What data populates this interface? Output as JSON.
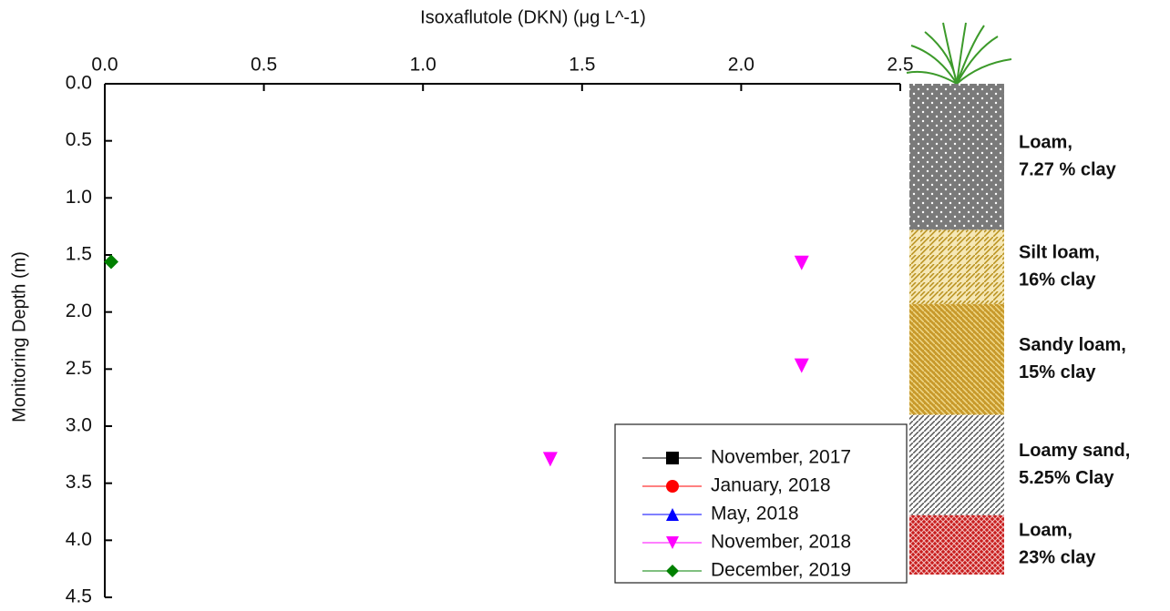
{
  "chart_data": {
    "type": "scatter",
    "title": "Isoxaflutole (DKN) (μg L^-1)",
    "y_label": "Monitoring Depth (m)",
    "xlim": [
      0,
      2.5
    ],
    "ylim": [
      0,
      4.5
    ],
    "y_inverted": true,
    "x_axis_position": "top",
    "xticks": [
      {
        "value": 0,
        "label": "0.0"
      },
      0.5,
      {
        "value": 1,
        "label": "1.0"
      },
      1.5,
      {
        "value": 2,
        "label": "2.0"
      },
      2.5
    ],
    "yticks": [
      {
        "value": 0,
        "label": "0.0"
      },
      0.5,
      {
        "value": 1,
        "label": "1.0"
      },
      1.5,
      {
        "value": 2,
        "label": "2.0"
      },
      2.5,
      {
        "value": 3,
        "label": "3.0"
      },
      3.5,
      {
        "value": 4,
        "label": "4.0"
      },
      4.5
    ],
    "series": [
      {
        "name": "November, 2017",
        "color": "#000000",
        "marker": "square",
        "x": [],
        "values": []
      },
      {
        "name": "January, 2018",
        "color": "#ff0000",
        "marker": "circle",
        "x": [],
        "values": []
      },
      {
        "name": "May, 2018",
        "color": "#0000ff",
        "marker": "triangle-up",
        "x": [],
        "values": []
      },
      {
        "name": "November, 2018",
        "color": "#ff00ff",
        "marker": "triangle-down",
        "x": [
          2.19,
          2.19,
          1.4
        ],
        "values": [
          1.57,
          2.47,
          3.29
        ]
      },
      {
        "name": "December, 2019",
        "color": "#008000",
        "marker": "diamond",
        "x": [
          0.02
        ],
        "values": [
          1.56
        ]
      }
    ],
    "legend": "bottom-right",
    "soil_layers": [
      {
        "top": 0,
        "bottom": 1.28,
        "pattern": "dots",
        "label": [
          "Loam,",
          "7.27 % clay"
        ]
      },
      {
        "top": 1.28,
        "bottom": 1.93,
        "pattern": "weave",
        "label": [
          "Silt loam,",
          "16% clay"
        ]
      },
      {
        "top": 1.93,
        "bottom": 2.9,
        "pattern": "sandy",
        "label": [
          "Sandy loam,",
          "15% clay"
        ]
      },
      {
        "top": 2.9,
        "bottom": 3.78,
        "pattern": "hatch",
        "label": [
          "Loamy sand,",
          "5.25% Clay"
        ]
      },
      {
        "top": 3.78,
        "bottom": 4.3,
        "pattern": "brick",
        "label": [
          "Loam,",
          "23% clay"
        ]
      }
    ]
  }
}
